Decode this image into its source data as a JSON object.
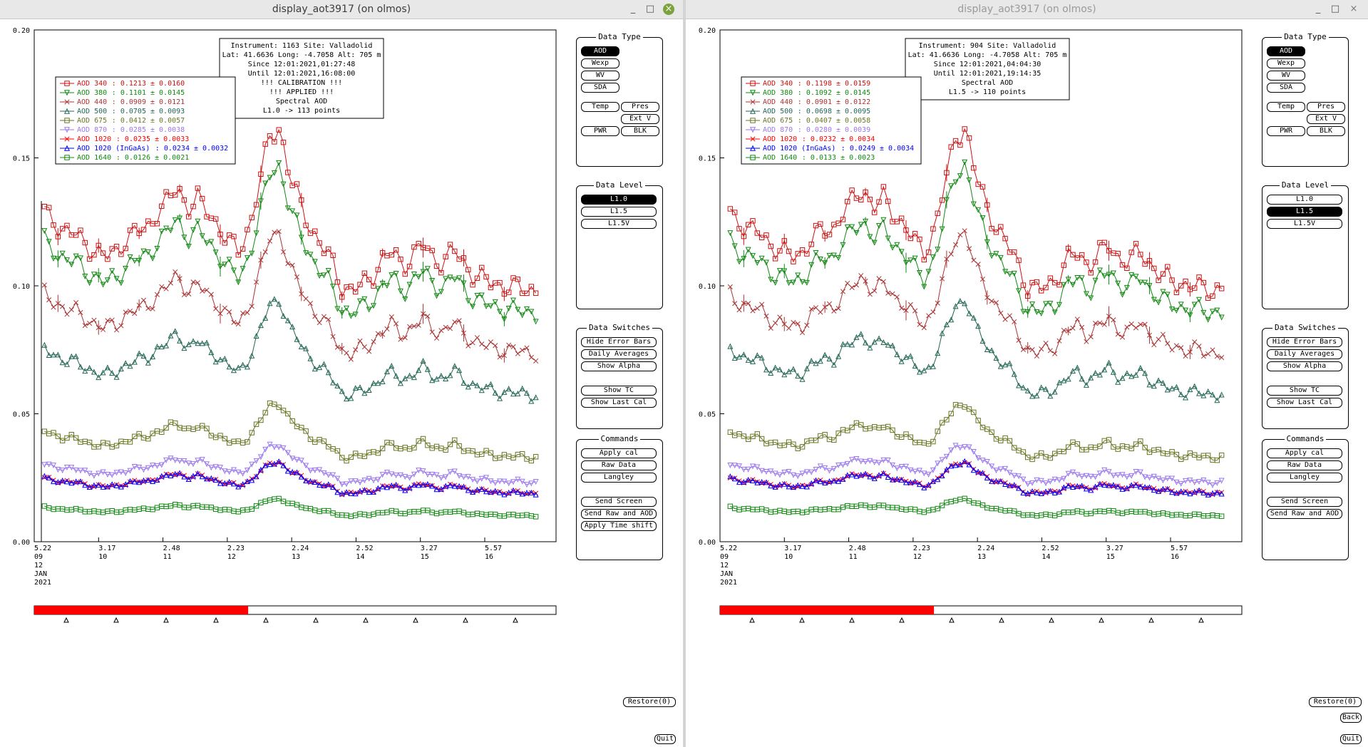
{
  "windows": [
    {
      "title": "display_aot3917 (on olmos)",
      "info": [
        "Instrument: 1163 Site: Valladolid",
        "Lat: 41.6636 Long: -4.7058 Alt: 705 m",
        "Since 12:01:2021,01:27:48",
        "Until 12:01:2021,16:08:00",
        "!!! CALIBRATION !!!",
        "!!!   APPLIED   !!!",
        "Spectral AOD",
        "L1.0 -> 113 points"
      ],
      "legend": [
        {
          "label": "AOD 340",
          "value": ": 0.1213 ± 0.0160",
          "color": "#cc1111"
        },
        {
          "label": "AOD 380",
          "value": ": 0.1101 ± 0.0145",
          "color": "#118811"
        },
        {
          "label": "AOD 440",
          "value": ": 0.0909 ± 0.0121",
          "color": "#aa3333"
        },
        {
          "label": "AOD 500",
          "value": ": 0.0705 ± 0.0093",
          "color": "#226655"
        },
        {
          "label": "AOD 675",
          "value": ": 0.0412 ± 0.0057",
          "color": "#667722"
        },
        {
          "label": "AOD 870",
          "value": ": 0.0285 ± 0.0038",
          "color": "#9977ee"
        },
        {
          "label": "AOD 1020",
          "value": ": 0.0235 ± 0.0033",
          "color": "#ff0000"
        },
        {
          "label": "AOD 1020 (InGaAs)",
          "value": ": 0.0234 ± 0.0032",
          "color": "#0000ff"
        },
        {
          "label": "AOD 1640",
          "value": ": 0.0126 ± 0.0021",
          "color": "#118811"
        }
      ],
      "controls": {
        "data_type": {
          "title": "Data Type",
          "buttons": [
            "AOD",
            "Wexp",
            "WV",
            "SDA",
            "Temp",
            "Pres",
            "Ext V",
            "PWR",
            "BLK"
          ],
          "active": "AOD"
        },
        "data_level": {
          "title": "Data Level",
          "buttons": [
            "L1.0",
            "L1.5",
            "L1.5V"
          ],
          "active": "L1.0"
        },
        "data_switches": {
          "title": "Data Switches",
          "buttons": [
            "Hide Error Bars",
            "Daily Averages",
            "Show Alpha",
            "Show TC",
            "Show Last Cal"
          ]
        },
        "commands": {
          "title": "Commands",
          "buttons": [
            "Apply cal",
            "Raw Data",
            "Langley",
            "Send Screen",
            "Send Raw and AOD",
            "Apply Time shift"
          ]
        },
        "restore": "Restore(0)",
        "back": "",
        "quit": "Quit"
      },
      "progress": 0.41
    },
    {
      "title": "display_aot3917 (on olmos)",
      "info": [
        "Instrument: 904 Site: Valladolid",
        "Lat: 41.6636 Long: -4.7058 Alt: 705 m",
        "Since 12:01:2021,04:04:30",
        "Until 12:01:2021,19:14:35",
        "Spectral AOD",
        "L1.5 -> 110 points"
      ],
      "legend": [
        {
          "label": "AOD 340",
          "value": ": 0.1198 ± 0.0159",
          "color": "#cc1111"
        },
        {
          "label": "AOD 380",
          "value": ": 0.1092 ± 0.0145",
          "color": "#118811"
        },
        {
          "label": "AOD 440",
          "value": ": 0.0901 ± 0.0122",
          "color": "#aa3333"
        },
        {
          "label": "AOD 500",
          "value": ": 0.0698 ± 0.0095",
          "color": "#226655"
        },
        {
          "label": "AOD 675",
          "value": ": 0.0407 ± 0.0058",
          "color": "#667722"
        },
        {
          "label": "AOD 870",
          "value": ": 0.0280 ± 0.0039",
          "color": "#9977ee"
        },
        {
          "label": "AOD 1020",
          "value": ": 0.0232 ± 0.0034",
          "color": "#ff0000"
        },
        {
          "label": "AOD 1020 (InGaAs)",
          "value": ": 0.0249 ± 0.0034",
          "color": "#0000ff"
        },
        {
          "label": "AOD 1640",
          "value": ": 0.0133 ± 0.0023",
          "color": "#118811"
        }
      ],
      "controls": {
        "data_type": {
          "title": "Data Type",
          "buttons": [
            "AOD",
            "Wexp",
            "WV",
            "SDA",
            "Temp",
            "Pres",
            "Ext V",
            "PWR",
            "BLK"
          ],
          "active": "AOD"
        },
        "data_level": {
          "title": "Data Level",
          "buttons": [
            "L1.0",
            "L1.5",
            "L1.5V"
          ],
          "active": "L1.5"
        },
        "data_switches": {
          "title": "Data Switches",
          "buttons": [
            "Hide Error Bars",
            "Daily Averages",
            "Show Alpha",
            "Show TC",
            "Show Last Cal"
          ]
        },
        "commands": {
          "title": "Commands",
          "buttons": [
            "Apply cal",
            "Raw Data",
            "Langley",
            "Send Screen",
            "Send Raw and AOD"
          ]
        },
        "restore": "Restore(0)",
        "back": "Back",
        "quit": "Quit"
      },
      "progress": 0.41
    }
  ],
  "chart_data": {
    "type": "line",
    "y_ticks": [
      "0.20",
      "0.15",
      "0.10",
      "0.05",
      "0.00"
    ],
    "ylim": [
      0,
      0.2
    ],
    "x_ticks": [
      {
        "time": "5.22",
        "day": "09"
      },
      {
        "time": "3.17",
        "day": "10"
      },
      {
        "time": "2.48",
        "day": "11"
      },
      {
        "time": "2.23",
        "day": "12"
      },
      {
        "time": "2.24",
        "day": "13"
      },
      {
        "time": "2.52",
        "day": "14"
      },
      {
        "time": "3.27",
        "day": "15"
      },
      {
        "time": "5.57",
        "day": "16"
      }
    ],
    "x_sub": [
      "12",
      "JAN",
      "2021"
    ],
    "xlim": [
      0,
      100
    ],
    "profile": [
      [
        0,
        0.135
      ],
      [
        3,
        0.126
      ],
      [
        6,
        0.122
      ],
      [
        8,
        0.12
      ],
      [
        10,
        0.116
      ],
      [
        12,
        0.114
      ],
      [
        14,
        0.111
      ],
      [
        16,
        0.113
      ],
      [
        18,
        0.119
      ],
      [
        20,
        0.121
      ],
      [
        22,
        0.122
      ],
      [
        24,
        0.129
      ],
      [
        26,
        0.133
      ],
      [
        28,
        0.138
      ],
      [
        30,
        0.131
      ],
      [
        32,
        0.134
      ],
      [
        34,
        0.128
      ],
      [
        36,
        0.124
      ],
      [
        38,
        0.117
      ],
      [
        40,
        0.113
      ],
      [
        42,
        0.123
      ],
      [
        44,
        0.14
      ],
      [
        46,
        0.158
      ],
      [
        48,
        0.162
      ],
      [
        50,
        0.142
      ],
      [
        52,
        0.132
      ],
      [
        54,
        0.123
      ],
      [
        56,
        0.116
      ],
      [
        58,
        0.11
      ],
      [
        60,
        0.1
      ],
      [
        62,
        0.098
      ],
      [
        64,
        0.1
      ],
      [
        66,
        0.104
      ],
      [
        68,
        0.11
      ],
      [
        70,
        0.113
      ],
      [
        72,
        0.108
      ],
      [
        74,
        0.112
      ],
      [
        76,
        0.116
      ],
      [
        78,
        0.111
      ],
      [
        80,
        0.109
      ],
      [
        82,
        0.114
      ],
      [
        84,
        0.109
      ],
      [
        86,
        0.104
      ],
      [
        88,
        0.102
      ],
      [
        90,
        0.101
      ],
      [
        92,
        0.1
      ],
      [
        94,
        0.099
      ],
      [
        96,
        0.099
      ],
      [
        100,
        0.098
      ]
    ],
    "series_scales": [
      1.0,
      0.91,
      0.75,
      0.585,
      0.335,
      0.235,
      0.193,
      0.193,
      0.104
    ],
    "series_markers": [
      "square",
      "tri-down",
      "x",
      "tri",
      "square",
      "tri-down",
      "x",
      "tri",
      "square"
    ],
    "series_colors": [
      "#cc1111",
      "#118811",
      "#aa3333",
      "#226655",
      "#667722",
      "#9977ee",
      "#ff0000",
      "#0000ff",
      "#118811"
    ]
  }
}
